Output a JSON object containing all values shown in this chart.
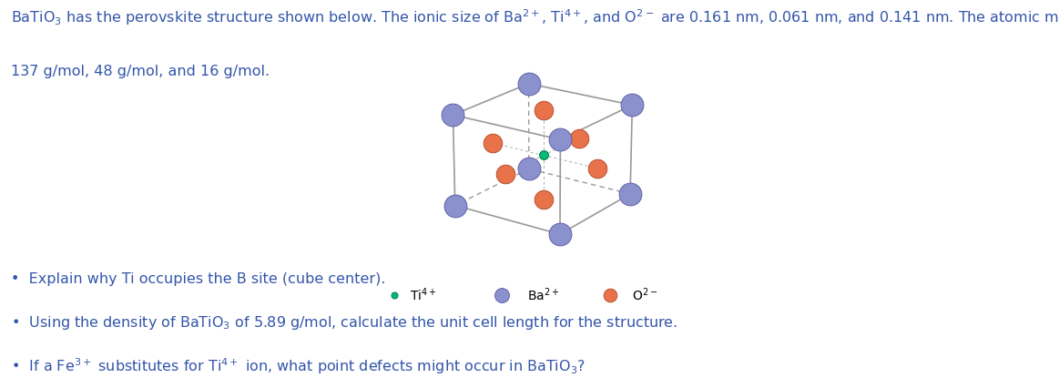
{
  "text_color": "#3355AA",
  "background_color": "#ffffff",
  "Ba_color": "#8B91CC",
  "O_color": "#E8724A",
  "Ti_color": "#00BB77",
  "Ba_size": 320,
  "O_size": 220,
  "Ti_size": 50,
  "Ba_edge": "#6060AA",
  "O_edge": "#B85030",
  "Ti_edge": "#008850",
  "edge_color": "#999999",
  "dashed_color": "#999999",
  "legend_Ti_label": "Ti$^{4+}$",
  "legend_Ba_label": "Ba$^{2+}$",
  "legend_O_label": "O$^{2-}$",
  "header_line1": "BaTiO$_3$ has the perovskite structure shown below. The ionic size of Ba$^{2+}$, Ti$^{4+}$, and O$^{2-}$ are 0.161 nm, 0.061 nm, and 0.141 nm. The atomic mass of Ba, Ti, and O are",
  "header_line2": "137 g/mol, 48 g/mol, and 16 g/mol.",
  "bullet1": "Explain why Ti occupies the B site (cube center).",
  "bullet2_pre": "Using the density of BaTiO",
  "bullet2_sub": "3",
  "bullet2_post": " of 5.89 g/mol, calculate the unit cell length for the structure.",
  "bullet3_pre": "If a Fe",
  "bullet3_sup1": "3+",
  "bullet3_mid": " substitutes for Ti",
  "bullet3_sup2": "4+",
  "bullet3_post_pre": " ion, what point defects might occur in BaTiO",
  "bullet3_sub": "3",
  "bullet3_end": "?",
  "font_size": 11.5
}
